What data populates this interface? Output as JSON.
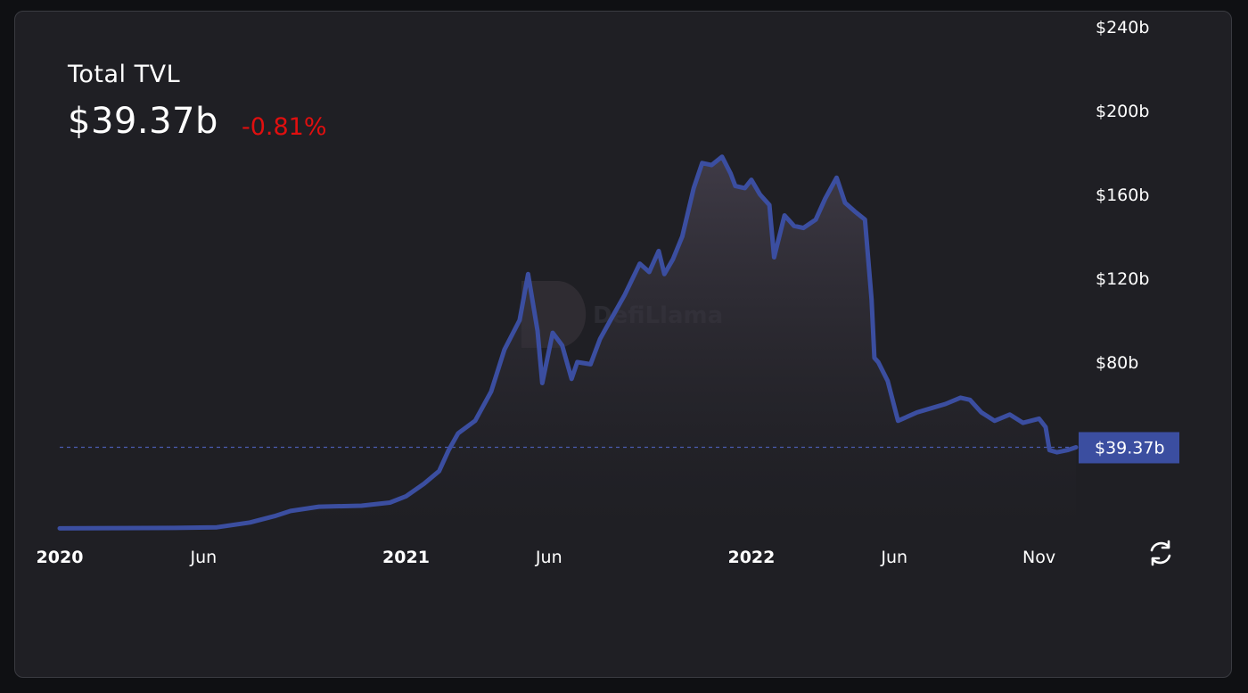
{
  "header": {
    "title": "Total TVL",
    "value": "$39.37b",
    "change": "-0.81%"
  },
  "watermark": "DefiLlama",
  "colors": {
    "line": "#3b4ea0",
    "change_negative": "#e00f0f",
    "label_bg": "#3b4ea0"
  },
  "icons": {
    "refresh": "refresh-icon"
  },
  "chart_data": {
    "type": "area",
    "title": "Total TVL",
    "xlabel": "",
    "ylabel": "",
    "x_ticks": [
      "2020",
      "Jun",
      "2021",
      "Jun",
      "2022",
      "Jun",
      "Nov"
    ],
    "y_ticks": [
      "$240b",
      "$200b",
      "$160b",
      "$120b",
      "$80b"
    ],
    "ylim": [
      0,
      240
    ],
    "current_label": "$39.37b",
    "current_value": 39.37,
    "y_unit": "billion USD",
    "series": [
      {
        "x": [
          "2020-01-01",
          "2020-03-01",
          "2020-05-01",
          "2020-06-15",
          "2020-07-20",
          "2020-08-15",
          "2020-09-01",
          "2020-10-01",
          "2020-11-15",
          "2020-12-15",
          "2021-01-01",
          "2021-01-20",
          "2021-02-05",
          "2021-02-15",
          "2021-02-25",
          "2021-03-15",
          "2021-04-01",
          "2021-04-15",
          "2021-05-01",
          "2021-05-10",
          "2021-05-20",
          "2021-05-25",
          "2021-06-05",
          "2021-06-15",
          "2021-06-25",
          "2021-07-01",
          "2021-07-15",
          "2021-07-25",
          "2021-08-05",
          "2021-08-20",
          "2021-09-05",
          "2021-09-15",
          "2021-09-25",
          "2021-10-01",
          "2021-10-10",
          "2021-10-20",
          "2021-11-01",
          "2021-11-10",
          "2021-11-20",
          "2021-12-01",
          "2021-12-10",
          "2021-12-15",
          "2021-12-25",
          "2022-01-01",
          "2022-01-10",
          "2022-01-20",
          "2022-01-25",
          "2022-02-05",
          "2022-02-15",
          "2022-02-25",
          "2022-03-10",
          "2022-03-20",
          "2022-04-01",
          "2022-04-10",
          "2022-04-20",
          "2022-05-01",
          "2022-05-08",
          "2022-05-11",
          "2022-05-15",
          "2022-05-25",
          "2022-06-05",
          "2022-06-15",
          "2022-06-25",
          "2022-07-10",
          "2022-07-25",
          "2022-08-10",
          "2022-08-20",
          "2022-09-01",
          "2022-09-15",
          "2022-10-01",
          "2022-10-15",
          "2022-11-01",
          "2022-11-08",
          "2022-11-12",
          "2022-11-20",
          "2022-12-01",
          "2022-12-10"
        ],
        "values": [
          0.7,
          0.8,
          0.9,
          1.2,
          3.5,
          6.5,
          9,
          11,
          11.5,
          13,
          16,
          22,
          28,
          38,
          46,
          52,
          66,
          86,
          100,
          122,
          95,
          70,
          94,
          88,
          72,
          80,
          79,
          91,
          100,
          112,
          127,
          123,
          133,
          122,
          129,
          140,
          163,
          175,
          174,
          178,
          170,
          164,
          163,
          167,
          160,
          155,
          130,
          150,
          145,
          144,
          148,
          158,
          168,
          156,
          152,
          148,
          110,
          82,
          80,
          71,
          52,
          54,
          56,
          58,
          60,
          63,
          62,
          56,
          52,
          55,
          51,
          53,
          49,
          38,
          37,
          38,
          39.37
        ]
      }
    ]
  }
}
